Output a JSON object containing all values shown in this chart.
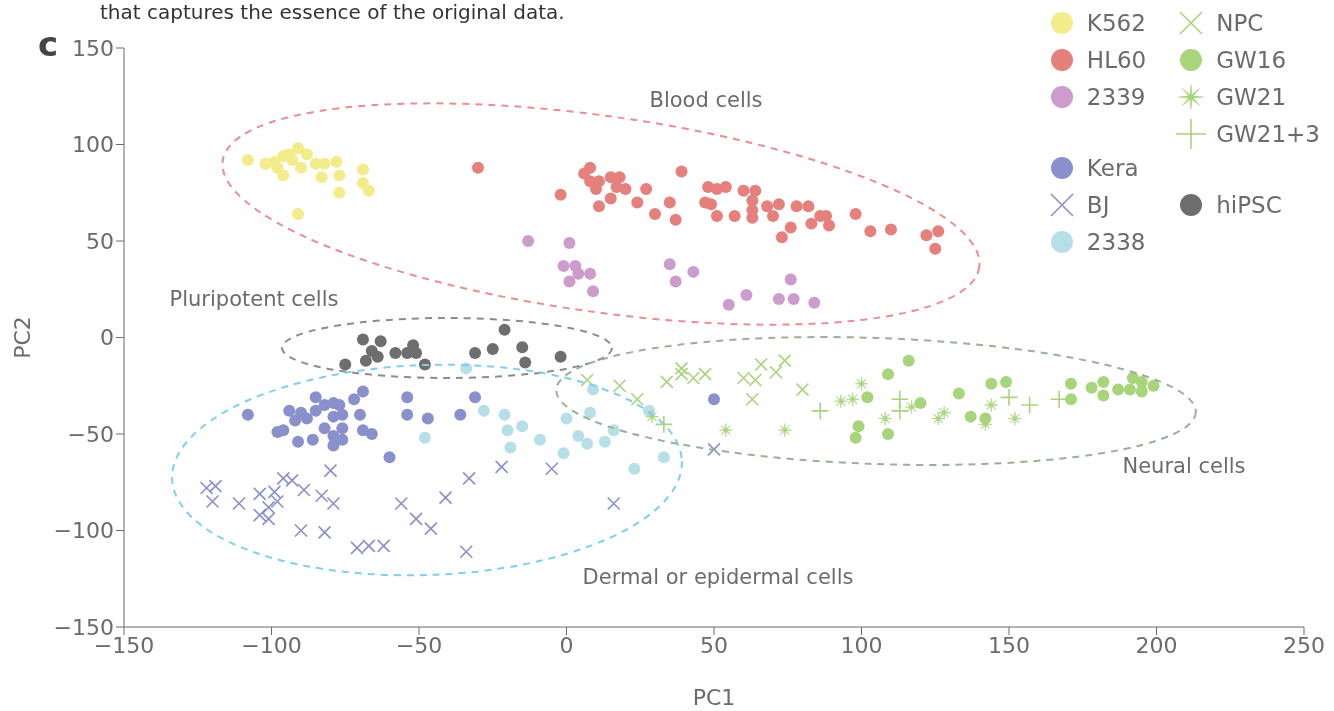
{
  "chart_data": {
    "type": "scatter",
    "xlabel": "PC1",
    "ylabel": "PC2",
    "xlim": [
      -150,
      250
    ],
    "xticks": [
      -150,
      -100,
      -50,
      0,
      50,
      100,
      150,
      200,
      250
    ],
    "ylim": [
      -150,
      150
    ],
    "yticks": [
      -150,
      -100,
      -50,
      0,
      50,
      100,
      150
    ],
    "grid": false,
    "legend": "top right",
    "annotations": [
      "that captures the essence of the original data.",
      "c",
      "Blood cells",
      "Pluripotent cells",
      "Neural cells",
      "Dermal or epidermal cells"
    ],
    "series": [
      {
        "name": "K562",
        "color": "#f3ec8a",
        "marker": "circle",
        "x": [
          -108,
          -102,
          -99,
          -96,
          -94,
          -91,
          -88,
          -90,
          -96,
          -85,
          -83,
          -82,
          -78,
          -77,
          -77,
          -69,
          -69,
          -67,
          -91,
          -93,
          -98
        ],
        "values": [
          92,
          90,
          91,
          94,
          95,
          98,
          95,
          88,
          84,
          90,
          83,
          90,
          91,
          84,
          75,
          87,
          80,
          76,
          64,
          92,
          88
        ]
      },
      {
        "name": "HL60",
        "color": "#e6807c",
        "marker": "circle",
        "x": [
          -30,
          -2,
          8,
          6,
          8,
          11,
          15,
          18,
          17,
          20,
          10,
          15,
          11,
          24,
          27,
          30,
          35,
          37,
          39,
          48,
          51,
          54,
          47,
          49,
          51,
          57,
          60,
          64,
          63,
          63,
          63,
          68,
          72,
          70,
          78,
          82,
          86,
          88,
          89,
          83,
          76,
          73,
          98,
          103,
          110,
          122,
          126,
          125
        ],
        "values": [
          88,
          74,
          88,
          85,
          81,
          81,
          83,
          83,
          78,
          77,
          77,
          72,
          68,
          70,
          77,
          64,
          70,
          61,
          86,
          78,
          77,
          78,
          70,
          69,
          63,
          63,
          76,
          76,
          71,
          66,
          62,
          68,
          69,
          63,
          68,
          68,
          63,
          63,
          58,
          59,
          57,
          52,
          64,
          55,
          56,
          53,
          55,
          46
        ]
      },
      {
        "name": "2339",
        "color": "#cc9ccc",
        "marker": "circle",
        "x": [
          -13,
          1,
          -1,
          3,
          4,
          8,
          1,
          9,
          35,
          37,
          43,
          76,
          61,
          55,
          72,
          77,
          84
        ],
        "values": [
          50,
          49,
          37,
          37,
          33,
          33,
          29,
          24,
          38,
          29,
          34,
          30,
          22,
          17,
          20,
          20,
          18
        ]
      },
      {
        "name": "Kera",
        "color": "#8a90cc",
        "marker": "circle",
        "x": [
          -108,
          -94,
          -90,
          -92,
          -88,
          -85,
          -85,
          -82,
          -79,
          -77,
          -79,
          -76,
          -82,
          -76,
          -79,
          -76,
          -79,
          -86,
          -91,
          -98,
          -96,
          -72,
          -69,
          -70,
          -69,
          -66,
          -60,
          -54,
          -54,
          -47,
          -36,
          -31,
          50
        ],
        "values": [
          -40,
          -38,
          -39,
          -43,
          -42,
          -31,
          -38,
          -35,
          -34,
          -35,
          -41,
          -40,
          -47,
          -47,
          -51,
          -53,
          -56,
          -53,
          -54,
          -49,
          -48,
          -32,
          -28,
          -40,
          -48,
          -50,
          -62,
          -31,
          -40,
          -42,
          -40,
          -31,
          -32
        ]
      },
      {
        "name": "BJ",
        "color": "#8a90cc",
        "marker": "cross",
        "x": [
          -122,
          -119,
          -120,
          -111,
          -104,
          -104,
          -101,
          -101,
          -99,
          -98,
          -96,
          -93,
          -89,
          -90,
          -83,
          -82,
          -80,
          -79,
          -71,
          -67,
          -62,
          -56,
          -51,
          -46,
          -41,
          -34,
          -33,
          -22,
          -5,
          16,
          50
        ],
        "values": [
          -78,
          -77,
          -85,
          -86,
          -81,
          -92,
          -94,
          -88,
          -80,
          -85,
          -73,
          -74,
          -79,
          -100,
          -82,
          -101,
          -69,
          -86,
          -109,
          -108,
          -108,
          -86,
          -94,
          -99,
          -83,
          -111,
          -73,
          -67,
          -68,
          -86,
          -58
        ]
      },
      {
        "name": "2338",
        "color": "#b6dfe8",
        "marker": "circle",
        "x": [
          -34,
          -48,
          -28,
          -21,
          -20,
          -15,
          -19,
          -9,
          -1,
          0,
          4,
          7,
          8,
          9,
          13,
          16,
          23,
          33,
          28
        ],
        "values": [
          -16,
          -52,
          -38,
          -40,
          -48,
          -46,
          -57,
          -53,
          -60,
          -42,
          -51,
          -55,
          -39,
          -27,
          -54,
          -48,
          -68,
          -62,
          -38
        ]
      },
      {
        "name": "NPC",
        "color": "#a8d47c",
        "marker": "cross",
        "x": [
          7,
          18,
          24,
          34,
          39,
          39,
          43,
          47,
          60,
          64,
          63,
          66,
          71,
          74,
          80
        ],
        "values": [
          -22,
          -25,
          -32,
          -23,
          -16,
          -19,
          -21,
          -19,
          -21,
          -22,
          -32,
          -14,
          -18,
          -12,
          -27
        ]
      },
      {
        "name": "GW16",
        "color": "#a8d47c",
        "marker": "circle",
        "x": [
          102,
          99,
          98,
          109,
          116,
          109,
          120,
          133,
          137,
          144,
          149,
          142,
          171,
          171,
          178,
          182,
          182,
          187,
          191,
          192,
          195,
          195,
          199
        ],
        "values": [
          -31,
          -46,
          -52,
          -19,
          -12,
          -50,
          -34,
          -29,
          -41,
          -24,
          -23,
          -42,
          -24,
          -32,
          -26,
          -23,
          -30,
          -27,
          -27,
          -21,
          -23,
          -28,
          -25
        ]
      },
      {
        "name": "GW21",
        "color": "#a8d47c",
        "marker": "star",
        "x": [
          29,
          54,
          74,
          93,
          97,
          100,
          108,
          117,
          126,
          128,
          144,
          142,
          152
        ],
        "values": [
          -41,
          -48,
          -48,
          -33,
          -32,
          -24,
          -42,
          -36,
          -42,
          -39,
          -35,
          -45,
          -42
        ]
      },
      {
        "name": "GW21+3",
        "color": "#a8d47c",
        "marker": "plus",
        "x": [
          33,
          86,
          113,
          113,
          150,
          157,
          167
        ],
        "values": [
          -45,
          -38,
          -32,
          -38,
          -31,
          -35,
          -32
        ]
      },
      {
        "name": "hiPSC",
        "color": "#6e6e6e",
        "marker": "circle",
        "x": [
          -75,
          -69,
          -63,
          -66,
          -64,
          -68,
          -58,
          -52,
          -54,
          -51,
          -48,
          -31,
          -25,
          -21,
          -15,
          -14,
          -2
        ],
        "values": [
          -14,
          -1,
          -2,
          -7,
          -10,
          -12,
          -8,
          -4,
          -8,
          -8,
          -14,
          -8,
          -6,
          4,
          -5,
          -13,
          -10
        ]
      }
    ]
  }
}
